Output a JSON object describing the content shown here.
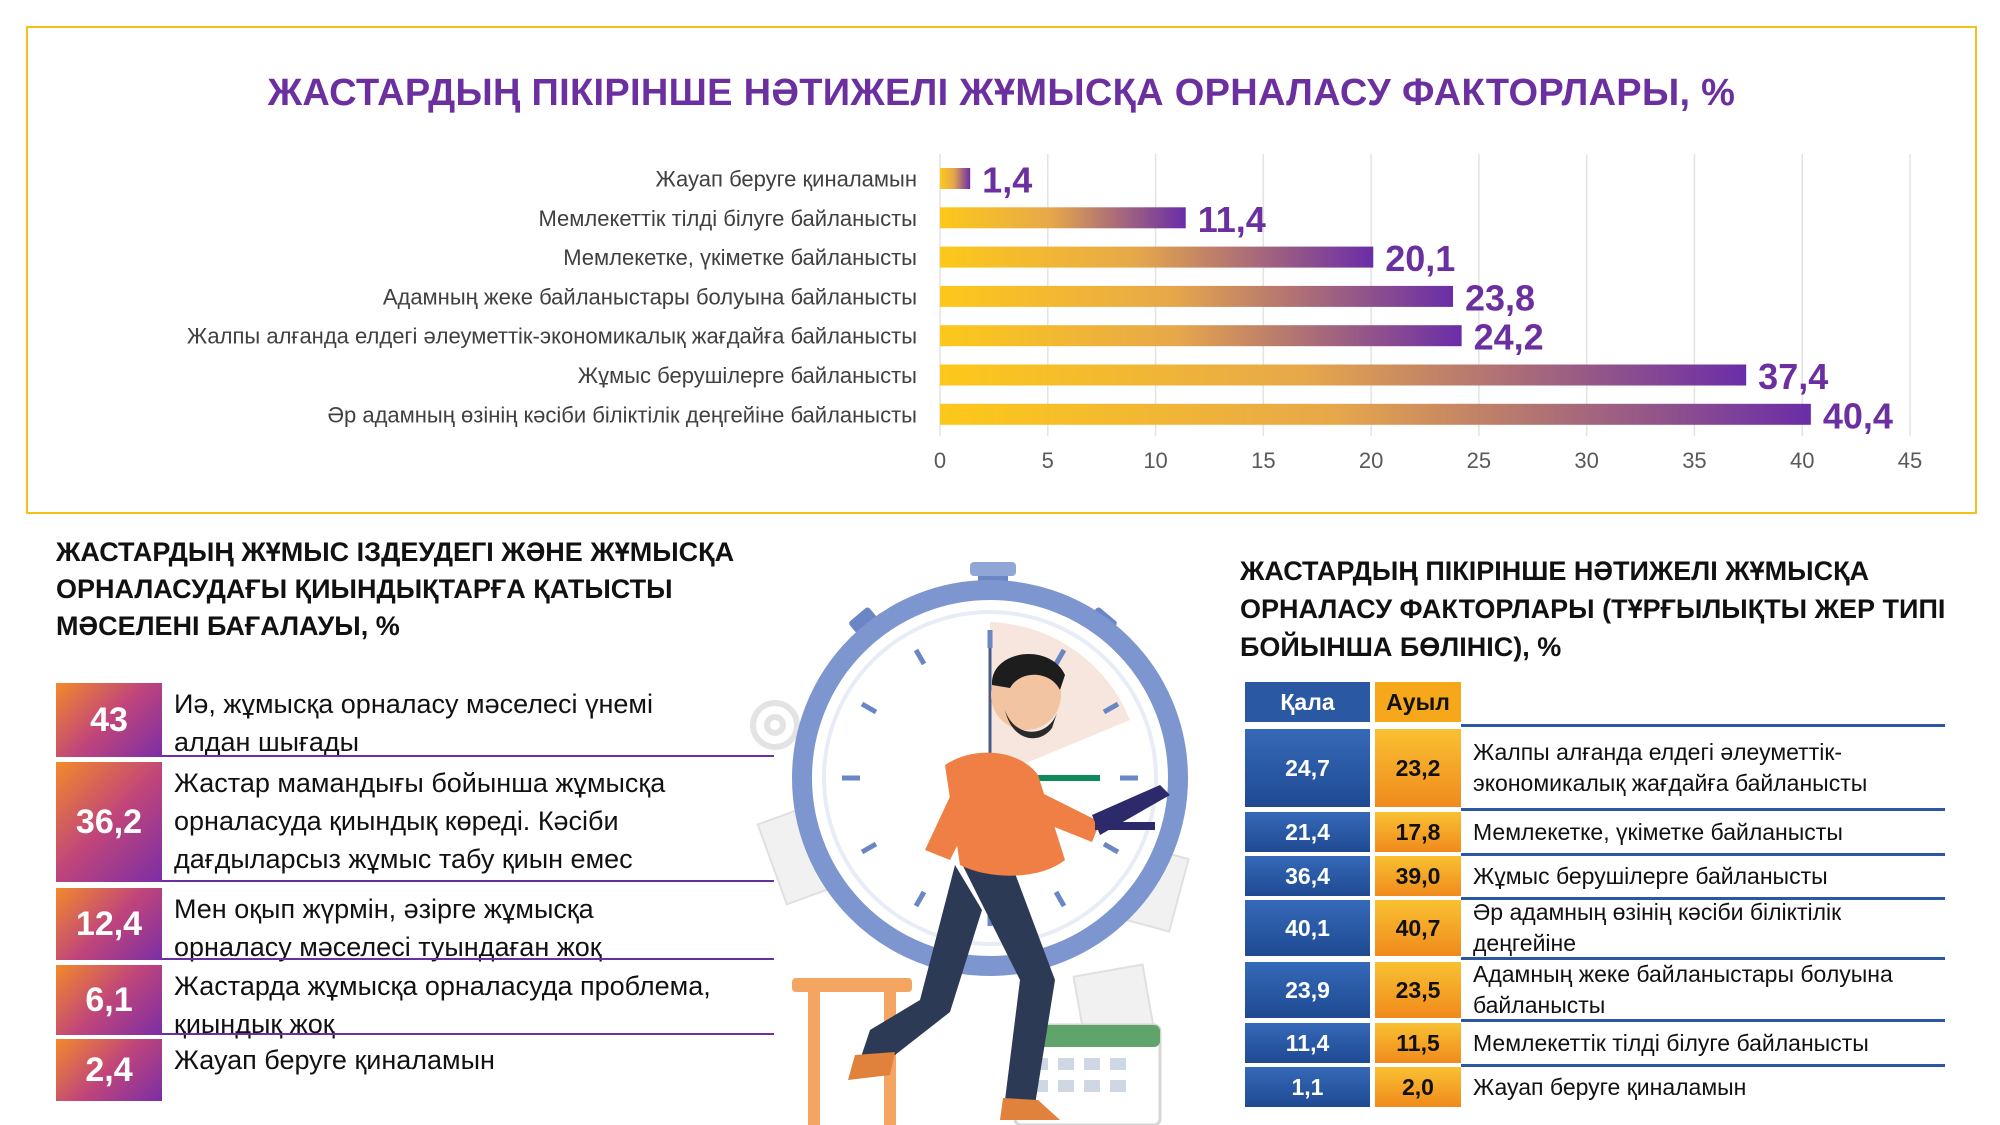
{
  "chart_data": [
    {
      "type": "bar",
      "orientation": "horizontal",
      "title": "ЖАСТАРДЫҢ ПІКІРІНШЕ НӘТИЖЕЛІ ЖҰМЫСҚА ОРНАЛАСУ ФАКТОРЛАРЫ, %",
      "categories": [
        "Жауап беруге қиналамын",
        "Мемлекеттік тілді білуге байланысты",
        "Мемлекетке, үкіметке байланысты",
        "Адамның жеке байланыстары болуына байланысты",
        "Жалпы алғанда елдегі әлеуметтік-экономикалық жағдайға байланысты",
        "Жұмыс берушілерге байланысты",
        "Әр адамның өзінің кәсіби біліктілік деңгейіне байланысты"
      ],
      "values": [
        1.4,
        11.4,
        20.1,
        23.8,
        24.2,
        37.4,
        40.4
      ],
      "value_labels": [
        "1,4",
        "11,4",
        "20,1",
        "23,8",
        "24,2",
        "37,4",
        "40,4"
      ],
      "xlim": [
        0,
        45
      ],
      "xticks": [
        "0",
        "5",
        "10",
        "15",
        "20",
        "25",
        "30",
        "35",
        "40",
        "45"
      ],
      "grid": true,
      "colors": {
        "bar_start": "#fdc81a",
        "bar_end": "#6a2da8",
        "label": "#6b2fa0"
      }
    },
    {
      "type": "table",
      "title": "ЖАСТАРДЫҢ ЖҰМЫС ІЗДЕУДЕГІ ЖӘНЕ ЖҰМЫСҚА ОРНАЛАСУДАҒЫ ҚИЫНДЫҚТАРҒА ҚАТЫСТЫ МӘСЕЛЕНІ БАҒАЛАУЫ, %",
      "rows": [
        {
          "value": "43",
          "text": "Иә, жұмысқа орналасу мәселесі үнемі алдан шығады"
        },
        {
          "value": "36,2",
          "text": "Жастар мамандығы бойынша жұмысқа орналасуда қиындық көреді. Кәсіби дағдыларсыз жұмыс табу қиын емес"
        },
        {
          "value": "12,4",
          "text": "Мен оқып жүрмін, әзірге жұмысқа орналасу мәселесі туындаған жоқ"
        },
        {
          "value": "6,1",
          "text": "Жастарда жұмысқа орналасуда проблема, қиындық жоқ"
        },
        {
          "value": "2,4",
          "text": "Жауап беруге қиналамын"
        }
      ]
    },
    {
      "type": "table",
      "title": "ЖАСТАРДЫҢ ПІКІРІНШЕ НӘТИЖЕЛІ ЖҰМЫСҚА ОРНАЛАСУ ФАКТОРЛАРЫ (ТҰРҒЫЛЫҚТЫ ЖЕР ТИПІ БОЙЫНША БӨЛІНІС), %",
      "columns": [
        "Қала",
        "Ауыл"
      ],
      "rows": [
        {
          "city": "24,7",
          "village": "23,2",
          "label": "Жалпы алғанда елдегі әлеуметтік-экономикалық жағдайға байланысты"
        },
        {
          "city": "21,4",
          "village": "17,8",
          "label": "Мемлекетке, үкіметке байланысты"
        },
        {
          "city": "36,4",
          "village": "39,0",
          "label": "Жұмыс берушілерге байланысты"
        },
        {
          "city": "40,1",
          "village": "40,7",
          "label": "Әр адамның өзінің кәсіби біліктілік деңгейіне"
        },
        {
          "city": "23,9",
          "village": "23,5",
          "label": "Адамның жеке байланыстары болуына байланысты"
        },
        {
          "city": "11,4",
          "village": "11,5",
          "label": "Мемлекеттік тілді білуге байланысты"
        },
        {
          "city": "1,1",
          "village": "2,0",
          "label": "Жауап беруге қиналамын"
        }
      ],
      "colors": {
        "city": "#2b58a3",
        "village": "#f6a81a"
      }
    }
  ]
}
